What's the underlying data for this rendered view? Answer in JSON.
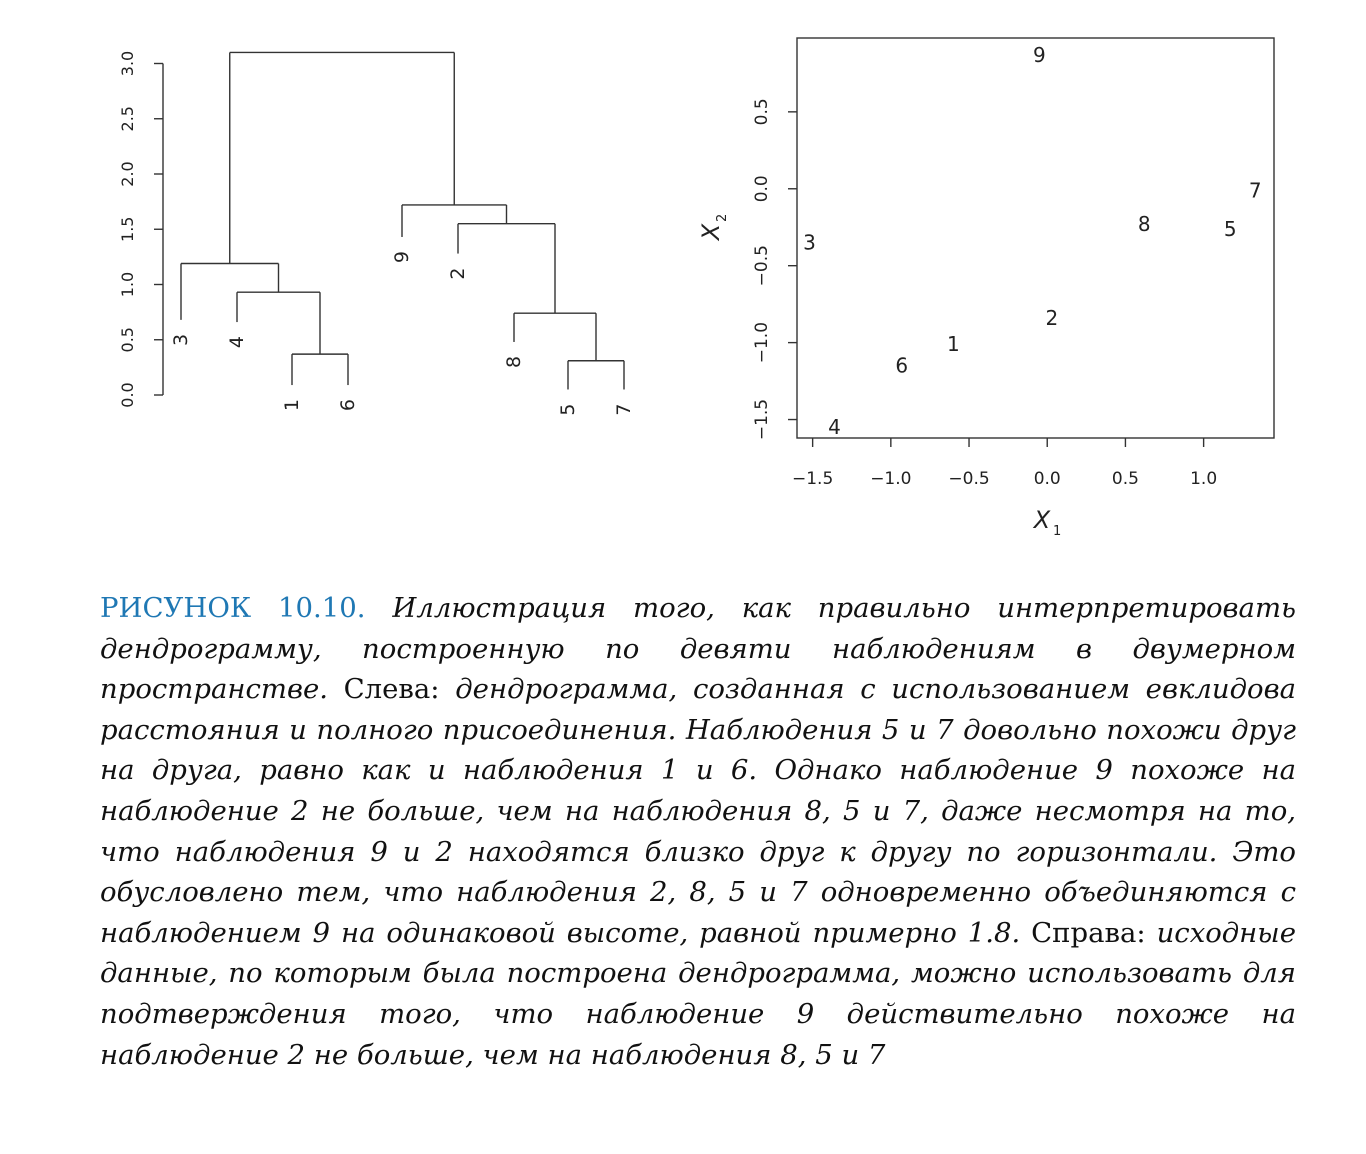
{
  "chart_data": [
    {
      "type": "dendrogram",
      "yticks": [
        "0.0",
        "0.5",
        "1.0",
        "1.5",
        "2.0",
        "2.5",
        "3.0"
      ],
      "ylim": [
        0,
        3.2
      ],
      "leaves": [
        "3",
        "4",
        "1",
        "6",
        "9",
        "2",
        "8",
        "5",
        "7"
      ],
      "merges": [
        {
          "join": [
            "1",
            "6"
          ],
          "height": 0.37
        },
        {
          "join": [
            "5",
            "7"
          ],
          "height": 0.31
        },
        {
          "join": [
            "4",
            "(1,6)"
          ],
          "height": 0.93
        },
        {
          "join": [
            "8",
            "(5,7)"
          ],
          "height": 0.74
        },
        {
          "join": [
            "3",
            "(4,1,6)"
          ],
          "height": 1.19
        },
        {
          "join": [
            "2",
            "(8,5,7)"
          ],
          "height": 1.55
        },
        {
          "join": [
            "9",
            "(2,8,5,7)"
          ],
          "height": 1.72
        },
        {
          "join": [
            "(3,4,1,6)",
            "(9,2,8,5,7)"
          ],
          "height": 3.1
        }
      ],
      "grid": false
    },
    {
      "type": "scatter",
      "xlabel": "X",
      "xlabel_sub": "1",
      "ylabel": "X",
      "ylabel_sub": "2",
      "xticks": [
        "−1.5",
        "−1.0",
        "−0.5",
        "0.0",
        "0.5",
        "1.0"
      ],
      "yticks": [
        "−1.5",
        "−1.0",
        "−0.5",
        "0.0",
        "0.5"
      ],
      "xlim": [
        -1.6,
        1.45
      ],
      "ylim": [
        -1.62,
        0.98
      ],
      "points": [
        {
          "label": "1",
          "x": -0.6,
          "y": -1.01
        },
        {
          "label": "2",
          "x": 0.03,
          "y": -0.84
        },
        {
          "label": "3",
          "x": -1.52,
          "y": -0.35
        },
        {
          "label": "4",
          "x": -1.36,
          "y": -1.55
        },
        {
          "label": "5",
          "x": 1.17,
          "y": -0.26
        },
        {
          "label": "6",
          "x": -0.93,
          "y": -1.15
        },
        {
          "label": "7",
          "x": 1.33,
          "y": -0.01
        },
        {
          "label": "8",
          "x": 0.62,
          "y": -0.23
        },
        {
          "label": "9",
          "x": -0.05,
          "y": 0.87
        }
      ],
      "grid": false
    }
  ],
  "caption": {
    "label": "РИСУНОК 10.10.",
    "s1": "Иллюстрация того, как правильно интерпретировать дендрограмму, построенную по девяти наблюдениям в двумерном пространстве.",
    "left_word": "Слева:",
    "s2": "дендрограмма, созданная с использованием евклидова расстояния и полного присоединения. Наблюдения 5 и 7 довольно похожи друг на друга, равно как и наблюдения 1 и 6. Однако наблюдение 9 похоже на наблюдение 2 не больше, чем на наблюдения 8, 5 и 7, даже несмотря на то, что наблюдения 9 и 2 находятся близко друг к другу по горизонтали. Это обусловлено тем, что наблюдения 2, 8, 5 и 7 одновременно объединяются с наблюдением 9 на одинаковой высоте, равной примерно 1.8.",
    "right_word": "Справа:",
    "s3": "исходные данные, по которым была построена дендрограмма, можно использовать для подтверждения того, что наблюдение 9 действительно похоже на наблюдение 2 не больше, чем на наблюдения 8, 5 и 7"
  }
}
